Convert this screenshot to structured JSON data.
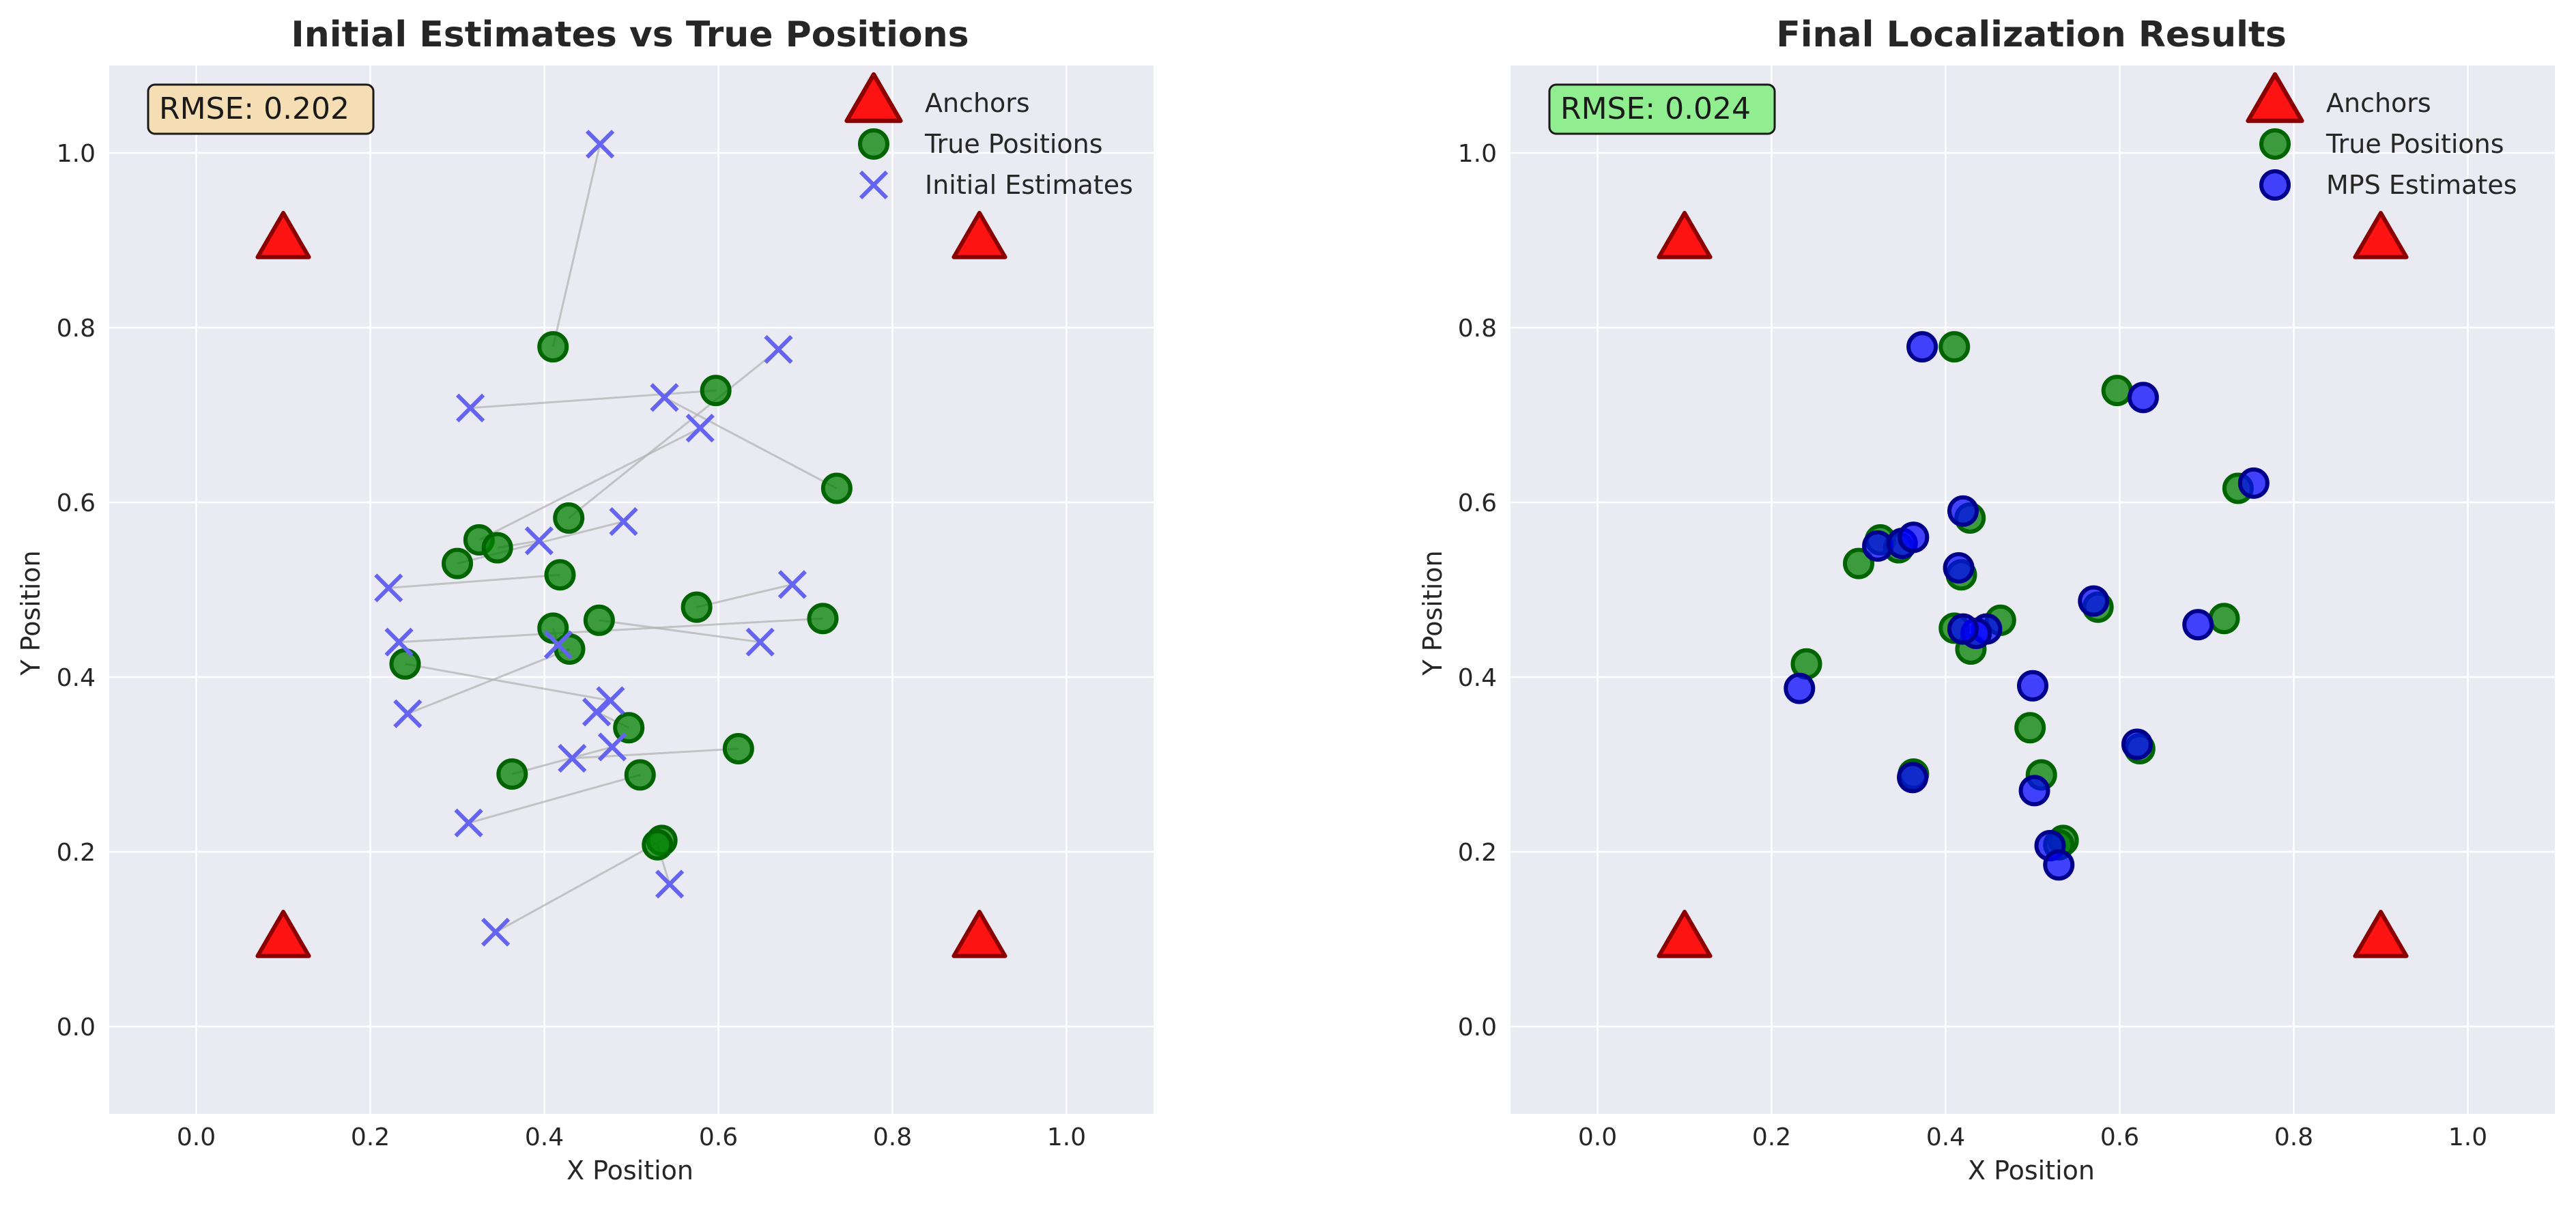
{
  "colors": {
    "plot_background": "#eaeaf2",
    "grid": "#ffffff",
    "anchor_fill": "#ff0000",
    "anchor_edge": "#8b0000",
    "true_fill": "#008000",
    "true_edge": "#006400",
    "initial_marker": "#6464f0",
    "mps_fill": "#0000ff",
    "mps_edge": "#00008b",
    "connector": "#b0b0b0",
    "rmse_box_left": "#f5deb3",
    "rmse_box_right": "#90ee90"
  },
  "chart_data": [
    {
      "type": "scatter",
      "title": "Initial Estimates vs True Positions",
      "xlabel": "X Position",
      "ylabel": "Y Position",
      "xlim": [
        -0.1,
        1.1
      ],
      "ylim": [
        -0.1,
        1.1
      ],
      "xticks": [
        "0.0",
        "0.2",
        "0.4",
        "0.6",
        "0.8",
        "1.0"
      ],
      "yticks": [
        "0.0",
        "0.2",
        "0.4",
        "0.6",
        "0.8",
        "1.0"
      ],
      "grid": true,
      "legend_position": "top-right",
      "annotation": "RMSE: 0.202",
      "annotation_box_color": "#f5deb3",
      "connectors": true,
      "series": [
        {
          "name": "Anchors",
          "marker": "triangle",
          "points": [
            [
              0.1,
              0.9
            ],
            [
              0.9,
              0.9
            ],
            [
              0.1,
              0.1
            ],
            [
              0.9,
              0.1
            ]
          ]
        },
        {
          "name": "True Positions",
          "marker": "circle-green",
          "points": [
            [
              0.41,
              0.778
            ],
            [
              0.597,
              0.728
            ],
            [
              0.736,
              0.616
            ],
            [
              0.428,
              0.582
            ],
            [
              0.325,
              0.557
            ],
            [
              0.346,
              0.548
            ],
            [
              0.3,
              0.53
            ],
            [
              0.418,
              0.517
            ],
            [
              0.575,
              0.48
            ],
            [
              0.72,
              0.467
            ],
            [
              0.463,
              0.465
            ],
            [
              0.41,
              0.456
            ],
            [
              0.429,
              0.432
            ],
            [
              0.24,
              0.415
            ],
            [
              0.497,
              0.342
            ],
            [
              0.623,
              0.318
            ],
            [
              0.363,
              0.289
            ],
            [
              0.51,
              0.288
            ],
            [
              0.535,
              0.213
            ],
            [
              0.53,
              0.208
            ]
          ]
        },
        {
          "name": "Initial Estimates",
          "marker": "x",
          "points": [
            [
              0.464,
              1.01
            ],
            [
              0.315,
              0.708
            ],
            [
              0.538,
              0.72
            ],
            [
              0.669,
              0.775
            ],
            [
              0.579,
              0.685
            ],
            [
              0.394,
              0.556
            ],
            [
              0.491,
              0.578
            ],
            [
              0.221,
              0.502
            ],
            [
              0.685,
              0.506
            ],
            [
              0.233,
              0.44
            ],
            [
              0.648,
              0.44
            ],
            [
              0.416,
              0.437
            ],
            [
              0.243,
              0.358
            ],
            [
              0.476,
              0.373
            ],
            [
              0.46,
              0.36
            ],
            [
              0.432,
              0.307
            ],
            [
              0.478,
              0.32
            ],
            [
              0.313,
              0.233
            ],
            [
              0.344,
              0.108
            ],
            [
              0.544,
              0.163
            ]
          ]
        }
      ]
    },
    {
      "type": "scatter",
      "title": "Final Localization Results",
      "xlabel": "X Position",
      "ylabel": "Y Position",
      "xlim": [
        -0.1,
        1.1
      ],
      "ylim": [
        -0.1,
        1.1
      ],
      "xticks": [
        "0.0",
        "0.2",
        "0.4",
        "0.6",
        "0.8",
        "1.0"
      ],
      "yticks": [
        "0.0",
        "0.2",
        "0.4",
        "0.6",
        "0.8",
        "1.0"
      ],
      "grid": true,
      "legend_position": "top-right",
      "annotation": "RMSE: 0.024",
      "annotation_box_color": "#90ee90",
      "connectors": false,
      "series": [
        {
          "name": "Anchors",
          "marker": "triangle",
          "points": [
            [
              0.1,
              0.9
            ],
            [
              0.9,
              0.9
            ],
            [
              0.1,
              0.1
            ],
            [
              0.9,
              0.1
            ]
          ]
        },
        {
          "name": "True Positions",
          "marker": "circle-green",
          "points": [
            [
              0.41,
              0.778
            ],
            [
              0.597,
              0.728
            ],
            [
              0.736,
              0.616
            ],
            [
              0.428,
              0.582
            ],
            [
              0.325,
              0.557
            ],
            [
              0.346,
              0.548
            ],
            [
              0.3,
              0.53
            ],
            [
              0.418,
              0.517
            ],
            [
              0.575,
              0.48
            ],
            [
              0.72,
              0.467
            ],
            [
              0.463,
              0.465
            ],
            [
              0.41,
              0.456
            ],
            [
              0.429,
              0.432
            ],
            [
              0.24,
              0.415
            ],
            [
              0.497,
              0.342
            ],
            [
              0.623,
              0.318
            ],
            [
              0.363,
              0.289
            ],
            [
              0.51,
              0.288
            ],
            [
              0.535,
              0.213
            ],
            [
              0.53,
              0.208
            ]
          ]
        },
        {
          "name": "MPS Estimates",
          "marker": "circle-blue",
          "points": [
            [
              0.373,
              0.778
            ],
            [
              0.627,
              0.72
            ],
            [
              0.754,
              0.622
            ],
            [
              0.42,
              0.59
            ],
            [
              0.322,
              0.55
            ],
            [
              0.35,
              0.553
            ],
            [
              0.363,
              0.56
            ],
            [
              0.415,
              0.525
            ],
            [
              0.57,
              0.487
            ],
            [
              0.69,
              0.46
            ],
            [
              0.447,
              0.455
            ],
            [
              0.435,
              0.45
            ],
            [
              0.42,
              0.455
            ],
            [
              0.232,
              0.387
            ],
            [
              0.5,
              0.39
            ],
            [
              0.62,
              0.323
            ],
            [
              0.362,
              0.285
            ],
            [
              0.502,
              0.27
            ],
            [
              0.52,
              0.207
            ],
            [
              0.53,
              0.185
            ]
          ]
        }
      ]
    }
  ]
}
